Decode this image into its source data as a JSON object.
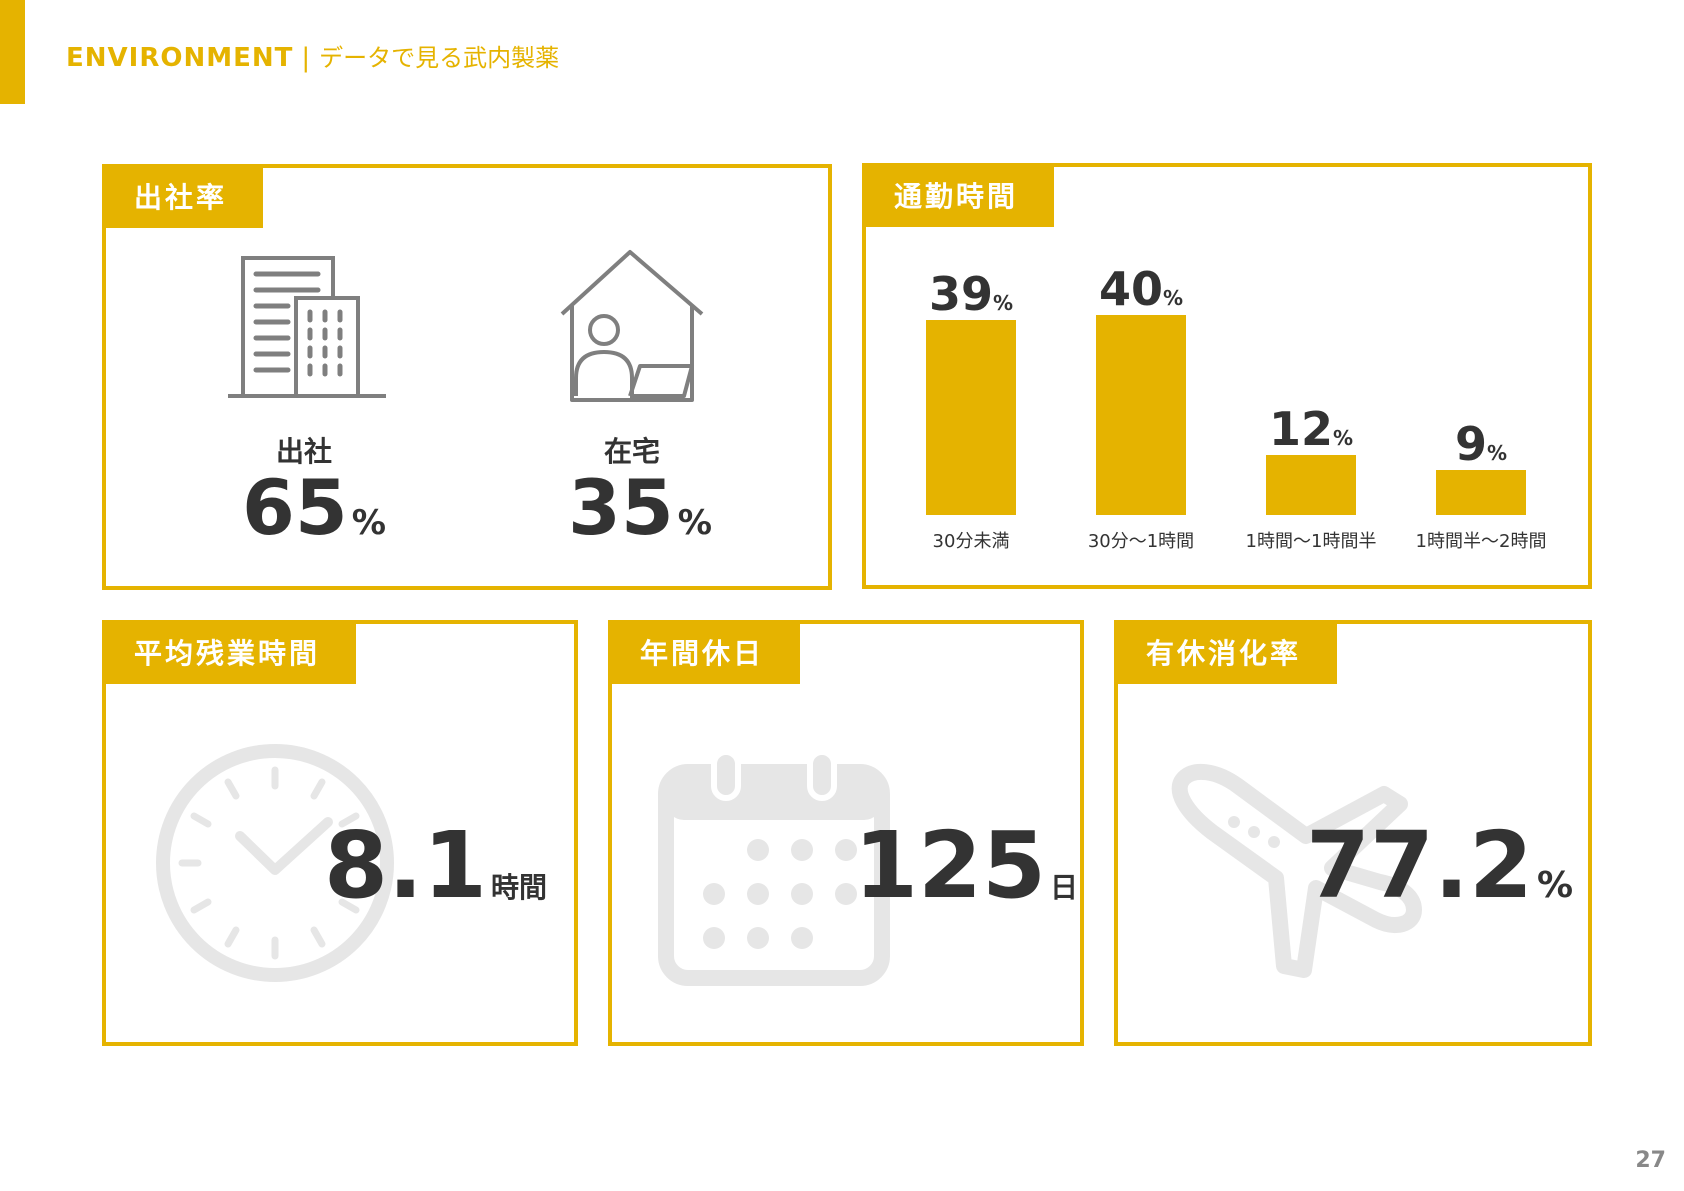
{
  "header": {
    "section": "ENVIRONMENT",
    "separator": "|",
    "subtitle": "データで見る武内製薬"
  },
  "attendance": {
    "tab": "出社率",
    "office_label": "出社",
    "office_value": "65",
    "office_unit": "%",
    "home_label": "在宅",
    "home_value": "35",
    "home_unit": "%"
  },
  "commute": {
    "tab": "通勤時間"
  },
  "chart_data": {
    "type": "bar",
    "title": "",
    "categories": [
      "30分未満",
      "30分〜1時間",
      "1時間〜1時間半",
      "1時間半〜2時間"
    ],
    "values": [
      39,
      40,
      12,
      9
    ],
    "unit": "%",
    "color": "#e5b300"
  },
  "overtime": {
    "tab": "平均残業時間",
    "value": "8.1",
    "unit": "時間"
  },
  "holidays": {
    "tab": "年間休日",
    "value": "125",
    "unit": "日"
  },
  "leave": {
    "tab": "有休消化率",
    "value": "77.2",
    "unit": "%"
  },
  "page_number": "27",
  "colors": {
    "accent": "#e5b300",
    "text": "#333333",
    "icon_gray": "#7f7f7f",
    "icon_light": "#e6e6e6"
  }
}
